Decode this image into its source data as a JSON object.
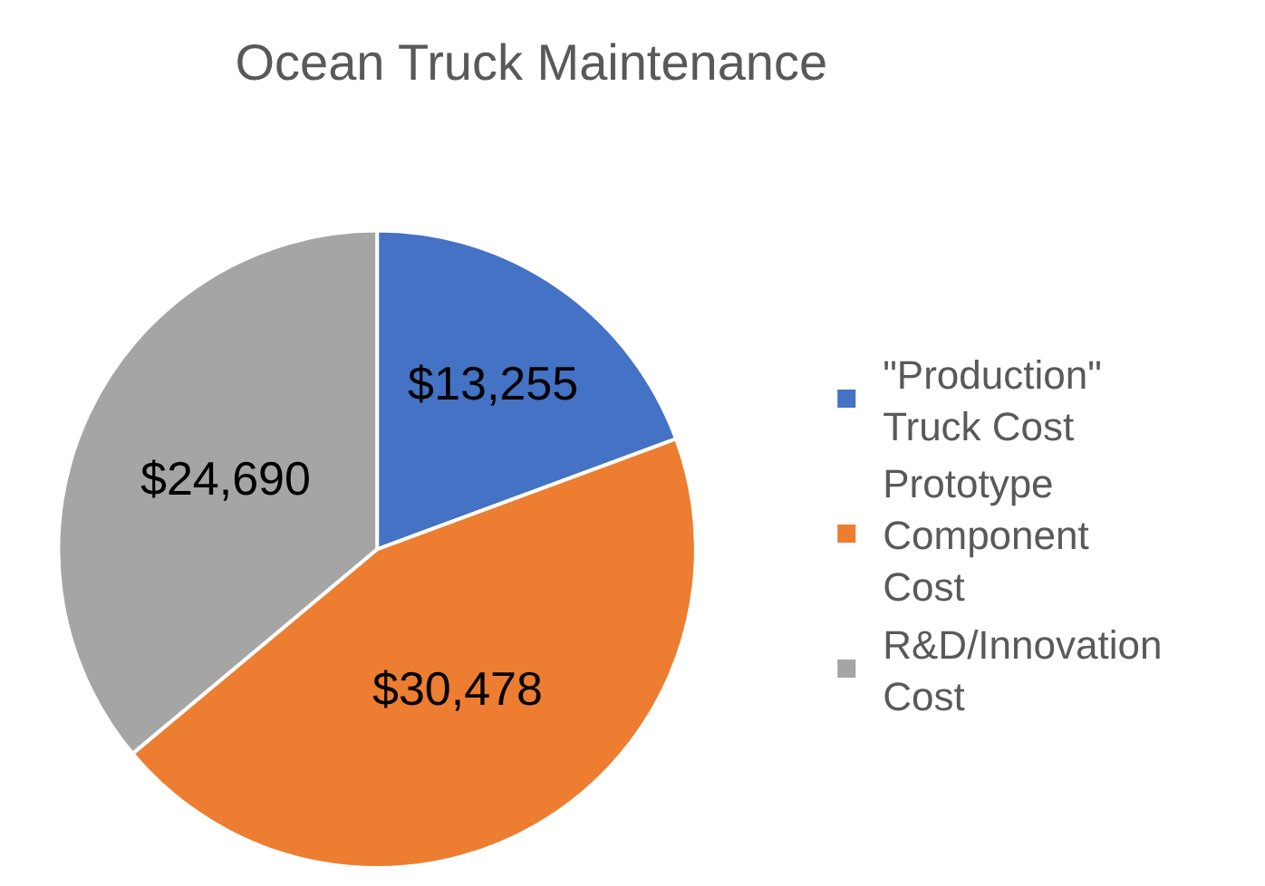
{
  "chart_data": {
    "type": "pie",
    "title": "Ocean Truck Maintenance",
    "categories": [
      "\"Production\" Truck Cost",
      "Prototype Component Cost",
      "R&D/Innovation Cost"
    ],
    "values": [
      13255,
      30478,
      24690
    ],
    "value_labels": [
      "$13,255",
      "$30,478",
      "$24,690"
    ],
    "colors": [
      "#4472c4",
      "#ed7d31",
      "#a5a5a5"
    ],
    "legend": "right"
  }
}
